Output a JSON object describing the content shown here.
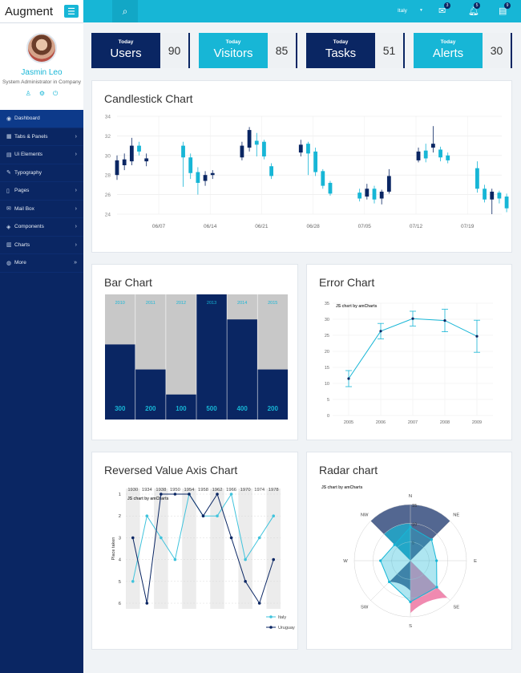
{
  "sidebar": {
    "brand": "Augment",
    "user": {
      "name": "Jasmin Leo",
      "role": "System Administrator in Company"
    },
    "items": [
      {
        "label": "Dashboard",
        "icon": "dashboard-icon",
        "arrow": ""
      },
      {
        "label": "Tabs & Panels",
        "icon": "table-icon",
        "arrow": "›"
      },
      {
        "label": "Ui Elements",
        "icon": "layout-icon",
        "arrow": "›"
      },
      {
        "label": "Typography",
        "icon": "pencil-icon",
        "arrow": ""
      },
      {
        "label": "Pages",
        "icon": "document-icon",
        "arrow": "›"
      },
      {
        "label": "Mail Box",
        "icon": "mail-icon",
        "arrow": "›"
      },
      {
        "label": "Components",
        "icon": "layers-icon",
        "arrow": "›"
      },
      {
        "label": "Charts",
        "icon": "chart-icon",
        "arrow": "›"
      },
      {
        "label": "More",
        "icon": "globe-icon",
        "arrow": "»"
      }
    ]
  },
  "topbar": {
    "language": "Italy",
    "badges": {
      "mail": "3",
      "bell": "5",
      "tasks": "9"
    }
  },
  "stats": [
    {
      "small": "Today",
      "label": "Users",
      "value": "90",
      "color": "#0a2663"
    },
    {
      "small": "Today",
      "label": "Visitors",
      "value": "85",
      "color": "#17b6d6"
    },
    {
      "small": "Today",
      "label": "Tasks",
      "value": "51",
      "color": "#0a2663"
    },
    {
      "small": "Today",
      "label": "Alerts",
      "value": "30",
      "color": "#17b6d6"
    }
  ],
  "panels": {
    "candlestick": "Candlestick Chart",
    "bar": "Bar Chart",
    "error": "Error Chart",
    "reversed": "Reversed Value Axis Chart",
    "radar": "Radar chart"
  },
  "chart_data": [
    {
      "type": "candlestick",
      "title": "Candlestick Chart",
      "ylim": [
        24,
        34
      ],
      "yticks": [
        24,
        26,
        28,
        30,
        32,
        34
      ],
      "xticks": [
        "06/07",
        "06/14",
        "06/21",
        "06/28",
        "07/05",
        "07/12",
        "07/19"
      ],
      "candles": [
        {
          "d": 0,
          "o": 28.0,
          "c": 29.5,
          "h": 30.0,
          "l": 27.5
        },
        {
          "d": 1,
          "o": 29.0,
          "c": 29.6,
          "h": 30.2,
          "l": 28.5
        },
        {
          "d": 2,
          "o": 29.4,
          "c": 31.0,
          "h": 31.8,
          "l": 29.0
        },
        {
          "d": 3,
          "o": 31.0,
          "c": 30.4,
          "h": 31.4,
          "l": 30.0
        },
        {
          "d": 4,
          "o": 29.4,
          "c": 29.7,
          "h": 30.2,
          "l": 28.9
        },
        {
          "d": 9,
          "o": 31.0,
          "c": 29.8,
          "h": 31.4,
          "l": 26.8
        },
        {
          "d": 10,
          "o": 29.8,
          "c": 28.2,
          "h": 30.2,
          "l": 27.6
        },
        {
          "d": 11,
          "o": 28.3,
          "c": 27.2,
          "h": 28.8,
          "l": 26.0
        },
        {
          "d": 12,
          "o": 27.4,
          "c": 28.0,
          "h": 28.4,
          "l": 26.9
        },
        {
          "d": 13,
          "o": 28.0,
          "c": 28.2,
          "h": 28.5,
          "l": 27.6
        },
        {
          "d": 17,
          "o": 29.8,
          "c": 31.0,
          "h": 31.4,
          "l": 29.5
        },
        {
          "d": 18,
          "o": 30.8,
          "c": 32.6,
          "h": 32.9,
          "l": 30.4
        },
        {
          "d": 19,
          "o": 31.5,
          "c": 31.1,
          "h": 32.3,
          "l": 29.9
        },
        {
          "d": 20,
          "o": 31.4,
          "c": 29.9,
          "h": 31.6,
          "l": 29.6
        },
        {
          "d": 21,
          "o": 28.9,
          "c": 27.9,
          "h": 29.2,
          "l": 27.6
        },
        {
          "d": 25,
          "o": 30.3,
          "c": 31.1,
          "h": 31.6,
          "l": 29.9
        },
        {
          "d": 26,
          "o": 31.2,
          "c": 30.2,
          "h": 31.4,
          "l": 28.0
        },
        {
          "d": 27,
          "o": 30.4,
          "c": 28.3,
          "h": 30.8,
          "l": 27.9
        },
        {
          "d": 28,
          "o": 28.4,
          "c": 26.9,
          "h": 28.6,
          "l": 26.6
        },
        {
          "d": 29,
          "o": 27.2,
          "c": 26.1,
          "h": 27.4,
          "l": 25.9
        },
        {
          "d": 33,
          "o": 26.2,
          "c": 25.6,
          "h": 26.6,
          "l": 25.3
        },
        {
          "d": 34,
          "o": 25.8,
          "c": 26.6,
          "h": 27.1,
          "l": 25.5
        },
        {
          "d": 35,
          "o": 26.6,
          "c": 25.5,
          "h": 26.9,
          "l": 25.1
        },
        {
          "d": 36,
          "o": 25.6,
          "c": 26.3,
          "h": 26.5,
          "l": 25.0
        },
        {
          "d": 37,
          "o": 26.3,
          "c": 27.9,
          "h": 28.6,
          "l": 26.1
        },
        {
          "d": 41,
          "o": 29.5,
          "c": 30.4,
          "h": 30.8,
          "l": 29.3
        },
        {
          "d": 42,
          "o": 30.5,
          "c": 29.7,
          "h": 31.2,
          "l": 29.3
        },
        {
          "d": 43,
          "o": 30.8,
          "c": 31.2,
          "h": 33.0,
          "l": 30.3
        },
        {
          "d": 44,
          "o": 30.6,
          "c": 29.8,
          "h": 30.9,
          "l": 29.4
        },
        {
          "d": 45,
          "o": 30.0,
          "c": 29.5,
          "h": 30.3,
          "l": 29.2
        },
        {
          "d": 49,
          "o": 28.7,
          "c": 26.6,
          "h": 29.4,
          "l": 26.2
        },
        {
          "d": 50,
          "o": 26.6,
          "c": 25.5,
          "h": 27.0,
          "l": 25.2
        },
        {
          "d": 51,
          "o": 25.5,
          "c": 26.3,
          "h": 26.6,
          "l": 24.0
        },
        {
          "d": 52,
          "o": 26.2,
          "c": 25.6,
          "h": 26.4,
          "l": 25.1
        },
        {
          "d": 53,
          "o": 25.8,
          "c": 24.6,
          "h": 26.1,
          "l": 24.2
        },
        {
          "d": 57,
          "o": 25.3,
          "c": 24.8,
          "h": 25.6,
          "l": 24.4
        },
        {
          "d": 58,
          "o": 24.9,
          "c": 24.2,
          "h": 25.2,
          "l": 24.0
        },
        {
          "d": 59,
          "o": 24.3,
          "c": 24.0,
          "h": 24.7,
          "l": 23.6
        },
        {
          "d": 60,
          "o": 24.0,
          "c": 23.7,
          "h": 24.3,
          "l": 23.5
        }
      ]
    },
    {
      "type": "bar",
      "title": "Bar Chart",
      "categories": [
        "2010",
        "2011",
        "2012",
        "2013",
        "2014",
        "2015"
      ],
      "values": [
        300,
        200,
        100,
        500,
        400,
        200
      ],
      "ylim": [
        0,
        500
      ]
    },
    {
      "type": "line",
      "title": "Error Chart",
      "watermark": "JS chart by amCharts",
      "x": [
        "2005",
        "2006",
        "2007",
        "2008",
        "2009"
      ],
      "values": [
        11.5,
        26.3,
        30.2,
        29.6,
        24.7
      ],
      "errors": [
        2.5,
        2.4,
        2.3,
        3.5,
        5.0
      ],
      "ylim": [
        0,
        35
      ],
      "yticks": [
        0,
        5,
        10,
        15,
        20,
        25,
        30,
        35
      ]
    },
    {
      "type": "line",
      "title": "Reversed Value Axis Chart",
      "watermark": "JS chart by amCharts",
      "ylabel": "Place taken",
      "x": [
        "1930",
        "1934",
        "1938",
        "1950",
        "1954",
        "1958",
        "1962",
        "1966",
        "1970",
        "1974",
        "1978"
      ],
      "ylim": [
        1,
        6
      ],
      "reversed": true,
      "series": [
        {
          "name": "Italy",
          "values": [
            5,
            2,
            3,
            4,
            1,
            2,
            2,
            1,
            4,
            3,
            2
          ],
          "color": "#3fc3dc"
        },
        {
          "name": "Uruguay",
          "values": [
            3,
            6,
            1,
            1,
            1,
            2,
            1,
            3,
            5,
            6,
            4
          ],
          "color": "#0a2663"
        }
      ],
      "legend": [
        "Italy",
        "Uruguay"
      ]
    },
    {
      "type": "radar",
      "title": "Radar chart",
      "watermark": "JS chart by amCharts",
      "directions": [
        "N",
        "NE",
        "E",
        "SE",
        "S",
        "SW",
        "W",
        "NW"
      ],
      "rlim": [
        0,
        15
      ],
      "rticks": [
        5,
        10,
        15
      ],
      "line_values": [
        9,
        8,
        7,
        10,
        11,
        8,
        8,
        6
      ],
      "sectors": [
        {
          "from": "NW",
          "to": "NE",
          "r": 15,
          "color": "#0a2663"
        },
        {
          "from": "NW",
          "to": "N",
          "r": 10,
          "color": "#17b6d6"
        },
        {
          "from": "S",
          "to": "SE",
          "r": 14,
          "color": "#e9588f"
        },
        {
          "from": "SW",
          "to": "S",
          "r": 8,
          "color": "#0a2663"
        }
      ]
    }
  ]
}
